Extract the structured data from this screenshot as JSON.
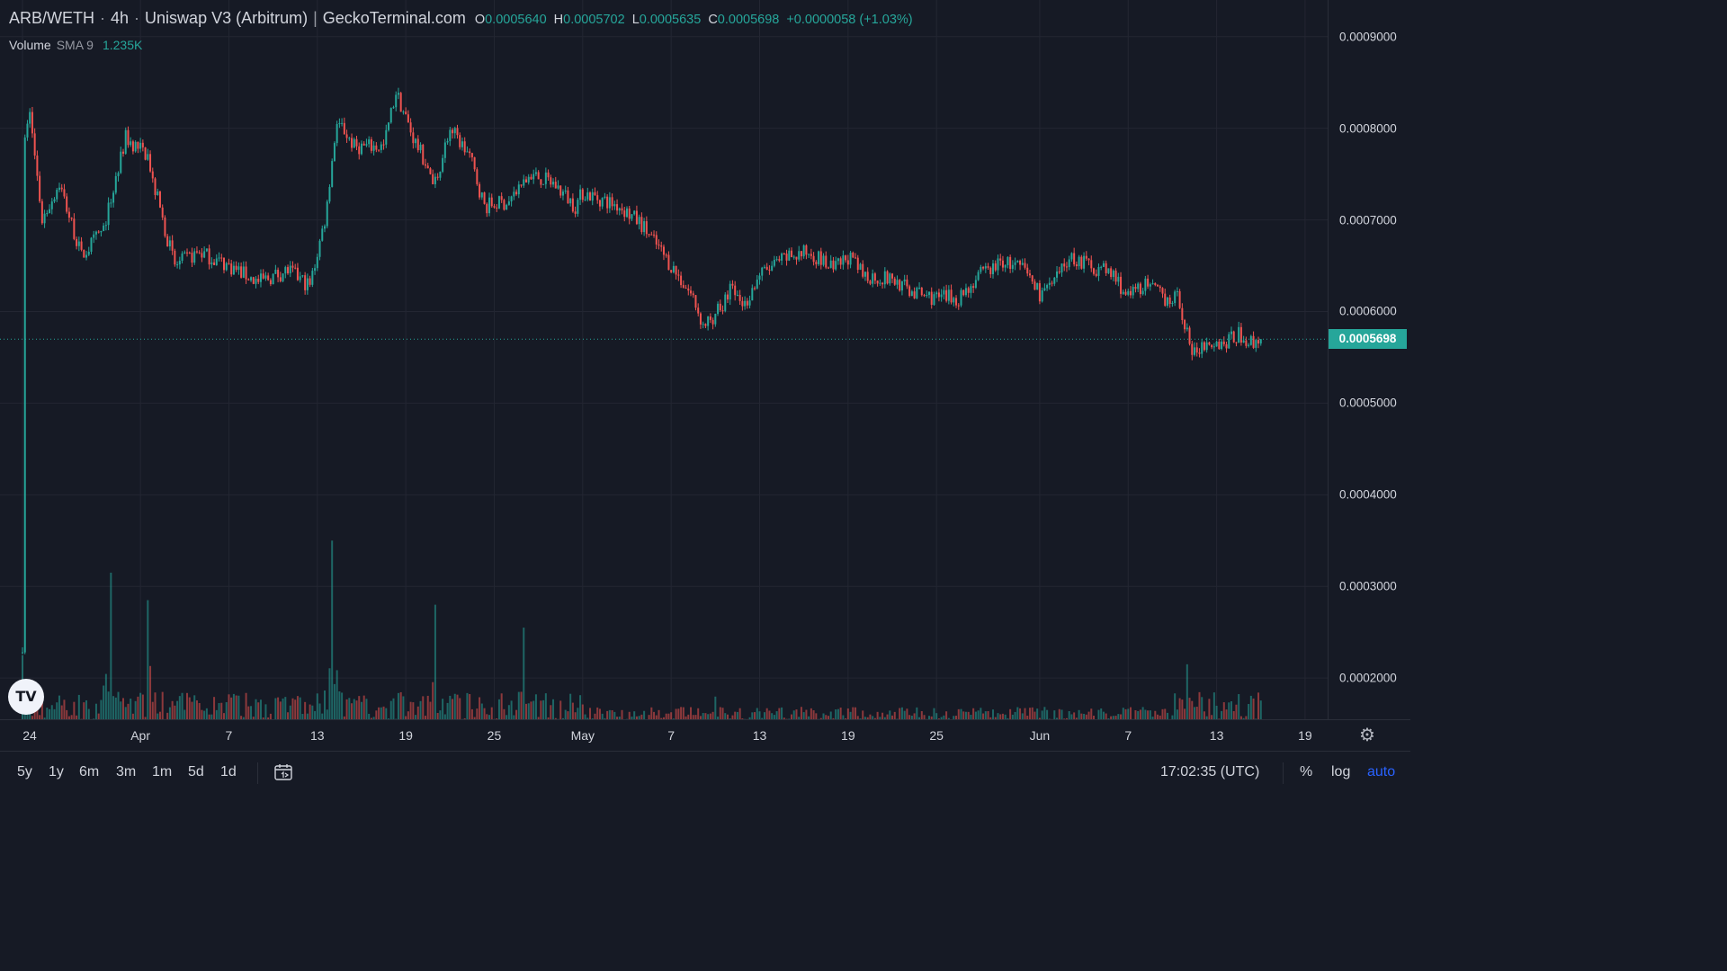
{
  "legend": {
    "pair": "ARB/WETH",
    "interval": "4h",
    "exchange": "Uniswap V3 (Arbitrum)",
    "source": "GeckoTerminal.com",
    "open_label": "O",
    "open": "0.0005640",
    "high_label": "H",
    "high": "0.0005702",
    "low_label": "L",
    "low": "0.0005635",
    "close_label": "C",
    "close": "0.0005698",
    "change": "+0.0000058 (+1.03%)"
  },
  "volume_legend": {
    "label": "Volume",
    "sma": "SMA 9",
    "value": "1.235K"
  },
  "price_scale": {
    "ticks": [
      "0.0009000",
      "0.0008000",
      "0.0007000",
      "0.0006000",
      "0.0005000",
      "0.0004000",
      "0.0003000",
      "0.0002000"
    ],
    "last_price": "0.0005698"
  },
  "time_scale": {
    "ticks": [
      "24",
      "Apr",
      "7",
      "13",
      "19",
      "25",
      "May",
      "7",
      "13",
      "19",
      "25",
      "Jun",
      "7",
      "13",
      "19"
    ]
  },
  "bottom_bar": {
    "ranges": [
      "5y",
      "1y",
      "6m",
      "3m",
      "1m",
      "5d",
      "1d"
    ],
    "clock": "17:02:35 (UTC)",
    "percent": "%",
    "log": "log",
    "auto": "auto"
  },
  "colors": {
    "up": "#26a69a",
    "down": "#ef5350",
    "background": "#161a25",
    "grid": "#232632",
    "accent": "#2962ff"
  },
  "chart_data": {
    "type": "candlestick",
    "title": "ARB/WETH · 4h · Uniswap V3 (Arbitrum) | GeckoTerminal.com",
    "interval_hours": 4,
    "x_range": [
      "2023-03-24",
      "2023-06-16"
    ],
    "ylim": [
      0.000155,
      0.00094
    ],
    "last_close": 0.0005698,
    "close_path": [
      {
        "t": "2023-03-24 00:00",
        "price": 0.000228
      },
      {
        "t": "2023-03-24 04:00",
        "price": 0.00079
      },
      {
        "t": "2023-03-24 12:00",
        "price": 0.00082
      },
      {
        "t": "2023-03-24 20:00",
        "price": 0.00077
      },
      {
        "t": "2023-03-25 08:00",
        "price": 0.0007
      },
      {
        "t": "2023-03-26 12:00",
        "price": 0.00074
      },
      {
        "t": "2023-03-28 00:00",
        "price": 0.00066
      },
      {
        "t": "2023-03-29 12:00",
        "price": 0.00069
      },
      {
        "t": "2023-03-31 00:00",
        "price": 0.00079
      },
      {
        "t": "2023-04-01 12:00",
        "price": 0.00077
      },
      {
        "t": "2023-04-02 12:00",
        "price": 0.0007
      },
      {
        "t": "2023-04-03 08:00",
        "price": 0.00065
      },
      {
        "t": "2023-04-05 00:00",
        "price": 0.000665
      },
      {
        "t": "2023-04-07 00:00",
        "price": 0.00065
      },
      {
        "t": "2023-04-09 00:00",
        "price": 0.000632
      },
      {
        "t": "2023-04-11 00:00",
        "price": 0.000645
      },
      {
        "t": "2023-04-12 12:00",
        "price": 0.000628
      },
      {
        "t": "2023-04-13 12:00",
        "price": 0.0007
      },
      {
        "t": "2023-04-14 08:00",
        "price": 0.00081
      },
      {
        "t": "2023-04-15 12:00",
        "price": 0.00078
      },
      {
        "t": "2023-04-17 12:00",
        "price": 0.00078
      },
      {
        "t": "2023-04-18 08:00",
        "price": 0.00084
      },
      {
        "t": "2023-04-19 12:00",
        "price": 0.00079
      },
      {
        "t": "2023-04-21 00:00",
        "price": 0.00074
      },
      {
        "t": "2023-04-22 00:00",
        "price": 0.0008
      },
      {
        "t": "2023-04-23 08:00",
        "price": 0.00077
      },
      {
        "t": "2023-04-24 08:00",
        "price": 0.000715
      },
      {
        "t": "2023-04-26 00:00",
        "price": 0.00072
      },
      {
        "t": "2023-04-27 12:00",
        "price": 0.00075
      },
      {
        "t": "2023-04-29 00:00",
        "price": 0.00074
      },
      {
        "t": "2023-04-30 12:00",
        "price": 0.000715
      },
      {
        "t": "2023-05-01 00:00",
        "price": 0.00073
      },
      {
        "t": "2023-05-03 12:00",
        "price": 0.000715
      },
      {
        "t": "2023-05-05 00:00",
        "price": 0.000695
      },
      {
        "t": "2023-05-07 00:00",
        "price": 0.00065
      },
      {
        "t": "2023-05-08 12:00",
        "price": 0.000615
      },
      {
        "t": "2023-05-09 04:00",
        "price": 0.000585
      },
      {
        "t": "2023-05-10 12:00",
        "price": 0.000605
      },
      {
        "t": "2023-05-11 00:00",
        "price": 0.000625
      },
      {
        "t": "2023-05-12 00:00",
        "price": 0.000608
      },
      {
        "t": "2023-05-13 00:00",
        "price": 0.00064
      },
      {
        "t": "2023-05-15 00:00",
        "price": 0.00066
      },
      {
        "t": "2023-05-16 12:00",
        "price": 0.000665
      },
      {
        "t": "2023-05-18 00:00",
        "price": 0.000645
      },
      {
        "t": "2023-05-19 00:00",
        "price": 0.00066
      },
      {
        "t": "2023-05-20 00:00",
        "price": 0.00064
      },
      {
        "t": "2023-05-22 00:00",
        "price": 0.000635
      },
      {
        "t": "2023-05-23 12:00",
        "price": 0.00062
      },
      {
        "t": "2023-05-25 00:00",
        "price": 0.000615
      },
      {
        "t": "2023-05-26 12:00",
        "price": 0.000615
      },
      {
        "t": "2023-05-28 00:00",
        "price": 0.00064
      },
      {
        "t": "2023-05-29 12:00",
        "price": 0.000655
      },
      {
        "t": "2023-05-31 00:00",
        "price": 0.000645
      },
      {
        "t": "2023-06-01 00:00",
        "price": 0.00062
      },
      {
        "t": "2023-06-02 00:00",
        "price": 0.00063
      },
      {
        "t": "2023-06-03 00:00",
        "price": 0.00066
      },
      {
        "t": "2023-06-04 12:00",
        "price": 0.00065
      },
      {
        "t": "2023-06-06 00:00",
        "price": 0.00064
      },
      {
        "t": "2023-06-07 00:00",
        "price": 0.000615
      },
      {
        "t": "2023-06-08 00:00",
        "price": 0.00063
      },
      {
        "t": "2023-06-09 12:00",
        "price": 0.000615
      },
      {
        "t": "2023-06-10 08:00",
        "price": 0.000615
      },
      {
        "t": "2023-06-11 00:00",
        "price": 0.00058
      },
      {
        "t": "2023-06-11 08:00",
        "price": 0.000555
      },
      {
        "t": "2023-06-12 12:00",
        "price": 0.00057
      },
      {
        "t": "2023-06-13 12:00",
        "price": 0.000565
      },
      {
        "t": "2023-06-14 12:00",
        "price": 0.000575
      },
      {
        "t": "2023-06-15 12:00",
        "price": 0.000565
      },
      {
        "t": "2023-06-16 00:00",
        "price": 0.0005698
      }
    ],
    "volume_peaks": [
      {
        "t": "2023-03-24 00:00",
        "volume_price_axis": 0.000225
      },
      {
        "t": "2023-03-30 00:00",
        "volume_price_axis": 0.000315
      },
      {
        "t": "2023-04-01 12:00",
        "volume_price_axis": 0.000285
      },
      {
        "t": "2023-04-14 00:00",
        "volume_price_axis": 0.00035
      },
      {
        "t": "2023-04-21 00:00",
        "volume_price_axis": 0.00028
      },
      {
        "t": "2023-04-27 00:00",
        "volume_price_axis": 0.000255
      },
      {
        "t": "2023-05-10 00:00",
        "volume_price_axis": 0.00021
      },
      {
        "t": "2023-06-11 00:00",
        "volume_price_axis": 0.000215
      }
    ]
  }
}
